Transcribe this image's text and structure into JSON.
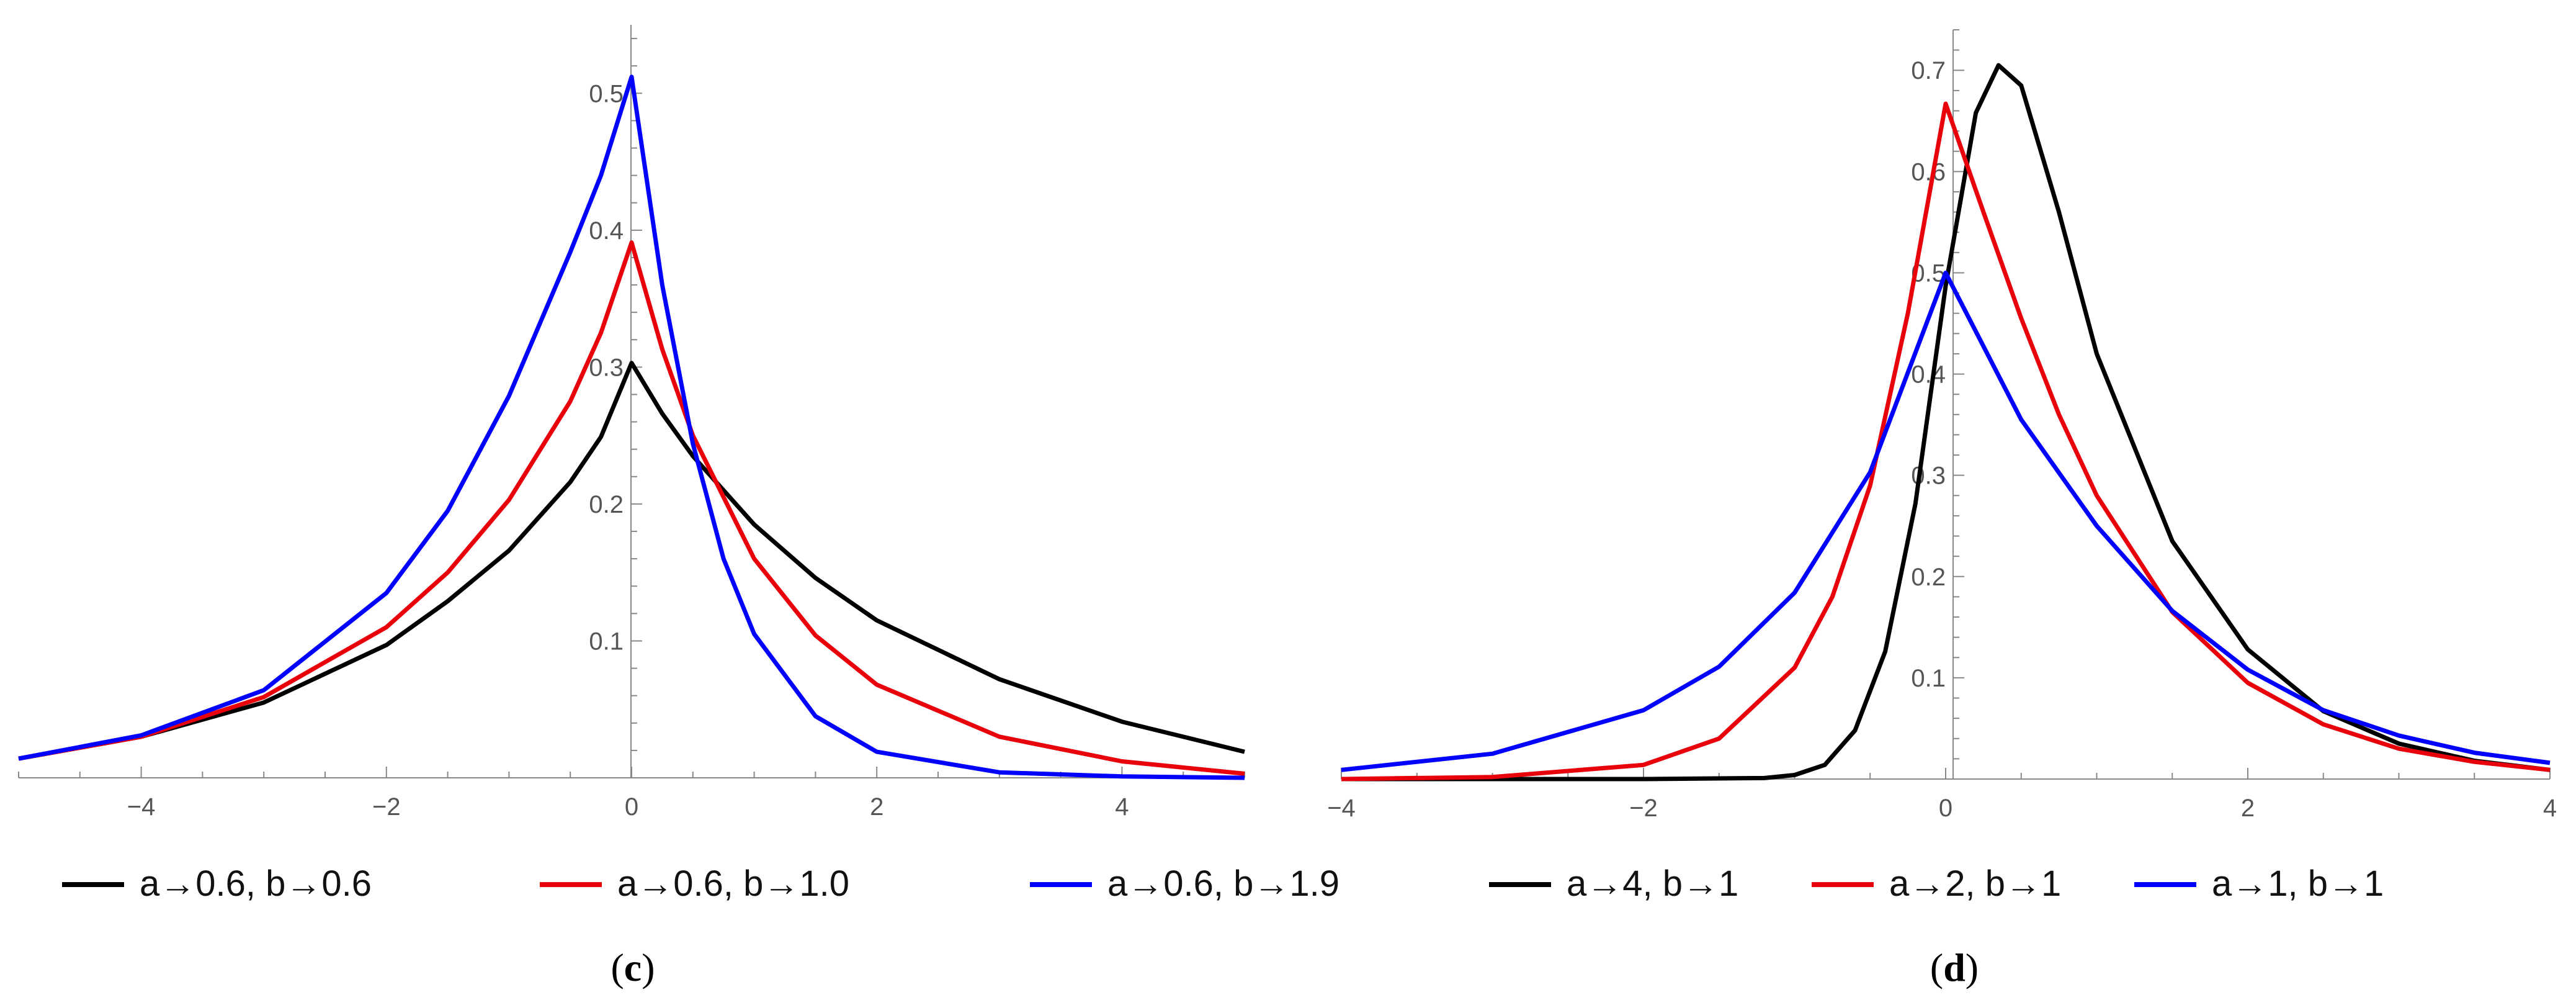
{
  "chart_data": [
    {
      "type": "line",
      "panel_label": "c",
      "xlim": [
        -5,
        5
      ],
      "ylim": [
        0,
        0.55
      ],
      "x_ticks": [
        {
          "v": -4,
          "label": "−4"
        },
        {
          "v": -2,
          "label": "−2"
        },
        {
          "v": 0,
          "label": "0"
        },
        {
          "v": 2,
          "label": "2"
        },
        {
          "v": 4,
          "label": "4"
        }
      ],
      "y_ticks": [
        {
          "v": 0.1,
          "label": "0.1"
        },
        {
          "v": 0.2,
          "label": "0.2"
        },
        {
          "v": 0.3,
          "label": "0.3"
        },
        {
          "v": 0.4,
          "label": "0.4"
        },
        {
          "v": 0.5,
          "label": "0.5"
        }
      ],
      "legend_placement": "bottom",
      "grid": false,
      "series": [
        {
          "name": "a→0.6, b→0.6",
          "color": "#000000",
          "x": [
            -5,
            -4,
            -3,
            -2,
            -1.5,
            -1,
            -0.5,
            -0.25,
            0,
            0.25,
            0.5,
            1,
            1.5,
            2,
            3,
            4,
            5
          ],
          "y": [
            0.014,
            0.03,
            0.055,
            0.097,
            0.129,
            0.166,
            0.216,
            0.249,
            0.303,
            0.266,
            0.235,
            0.185,
            0.146,
            0.115,
            0.072,
            0.041,
            0.019
          ]
        },
        {
          "name": "a→0.6, b→1.0",
          "color": "#e8000b",
          "x": [
            -5,
            -4,
            -3,
            -2,
            -1.5,
            -1,
            -0.5,
            -0.25,
            0,
            0.25,
            0.5,
            1,
            1.5,
            2,
            3,
            4,
            5
          ],
          "y": [
            0.014,
            0.03,
            0.059,
            0.11,
            0.15,
            0.203,
            0.275,
            0.325,
            0.391,
            0.313,
            0.25,
            0.16,
            0.104,
            0.068,
            0.03,
            0.012,
            0.003
          ]
        },
        {
          "name": "a→0.6, b→1.9",
          "color": "#0000ff",
          "x": [
            -5,
            -4,
            -3,
            -2,
            -1.5,
            -1,
            -0.5,
            -0.25,
            0,
            0.25,
            0.5,
            0.75,
            1,
            1.5,
            2,
            3,
            4,
            5
          ],
          "y": [
            0.014,
            0.031,
            0.064,
            0.135,
            0.195,
            0.279,
            0.384,
            0.44,
            0.512,
            0.36,
            0.244,
            0.16,
            0.105,
            0.045,
            0.019,
            0.004,
            0.001,
            0.0
          ]
        }
      ]
    },
    {
      "type": "line",
      "panel_label": "d",
      "xlim": [
        -4,
        4
      ],
      "ylim": [
        0,
        0.74
      ],
      "x_ticks": [
        {
          "v": -4,
          "label": "−4"
        },
        {
          "v": -2,
          "label": "−2"
        },
        {
          "v": 0,
          "label": "0"
        },
        {
          "v": 2,
          "label": "2"
        },
        {
          "v": 4,
          "label": "4"
        }
      ],
      "y_ticks": [
        {
          "v": 0.1,
          "label": "0.1"
        },
        {
          "v": 0.2,
          "label": "0.2"
        },
        {
          "v": 0.3,
          "label": "0.3"
        },
        {
          "v": 0.4,
          "label": "0.4"
        },
        {
          "v": 0.5,
          "label": "0.5"
        },
        {
          "v": 0.6,
          "label": "0.6"
        },
        {
          "v": 0.7,
          "label": "0.7"
        }
      ],
      "legend_placement": "bottom",
      "grid": false,
      "series": [
        {
          "name": "a→4, b→1",
          "color": "#000000",
          "x": [
            -4,
            -2,
            -1.2,
            -1,
            -0.8,
            -0.6,
            -0.4,
            -0.2,
            0,
            0.2,
            0.35,
            0.5,
            0.75,
            1,
            1.5,
            2,
            2.5,
            3,
            3.5,
            4
          ],
          "y": [
            0.0,
            0.0,
            0.001,
            0.004,
            0.014,
            0.048,
            0.126,
            0.272,
            0.487,
            0.658,
            0.705,
            0.685,
            0.56,
            0.42,
            0.235,
            0.128,
            0.067,
            0.035,
            0.018,
            0.009
          ]
        },
        {
          "name": "a→2, b→1",
          "color": "#e8000b",
          "x": [
            -4,
            -3,
            -2,
            -1.5,
            -1,
            -0.75,
            -0.5,
            -0.25,
            0,
            0.25,
            0.5,
            0.75,
            1,
            1.5,
            2,
            2.5,
            3,
            3.5,
            4
          ],
          "y": [
            0.0,
            0.002,
            0.014,
            0.04,
            0.11,
            0.18,
            0.29,
            0.46,
            0.667,
            0.56,
            0.455,
            0.36,
            0.28,
            0.165,
            0.095,
            0.054,
            0.03,
            0.017,
            0.009
          ]
        },
        {
          "name": "a→1, b→1",
          "color": "#0000ff",
          "x": [
            -4,
            -3,
            -2,
            -1.5,
            -1,
            -0.5,
            0,
            0.5,
            1,
            1.5,
            2,
            2.5,
            3,
            3.5,
            4
          ],
          "y": [
            0.009,
            0.025,
            0.068,
            0.111,
            0.184,
            0.303,
            0.5,
            0.355,
            0.25,
            0.166,
            0.108,
            0.068,
            0.043,
            0.026,
            0.016
          ]
        }
      ]
    }
  ]
}
